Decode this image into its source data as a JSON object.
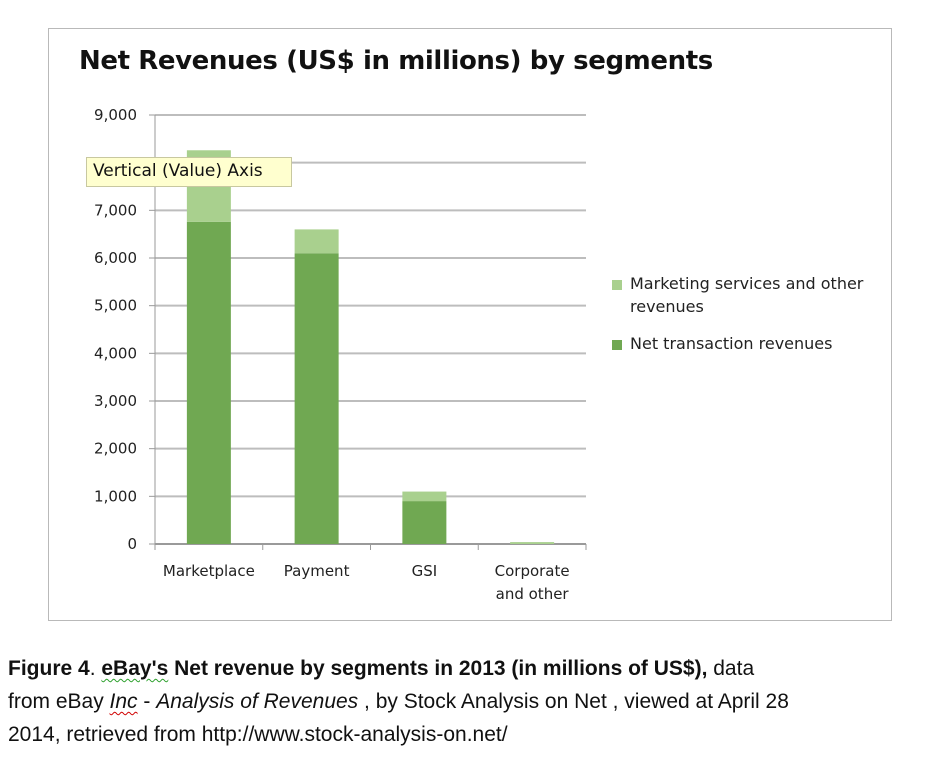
{
  "chart_data": {
    "type": "bar",
    "stacked": true,
    "title": "Net Revenues (US$ in millions) by segments",
    "xlabel": "",
    "ylabel": "",
    "categories": [
      "Marketplace",
      "Payment",
      "GSI",
      "Corporate and other"
    ],
    "category_lines": [
      [
        "Marketplace"
      ],
      [
        "Payment"
      ],
      [
        "GSI"
      ],
      [
        "Corporate",
        "and other"
      ]
    ],
    "series": [
      {
        "name": "Net transaction revenues",
        "values": [
          6760,
          6100,
          900,
          0
        ],
        "color": "#70a852"
      },
      {
        "name": "Marketing services and other revenues",
        "values": [
          1500,
          500,
          200,
          40
        ],
        "color": "#a9d08e"
      }
    ],
    "ylim": [
      0,
      9000
    ],
    "yticks": [
      0,
      1000,
      2000,
      3000,
      4000,
      5000,
      6000,
      7000,
      8000,
      9000
    ],
    "ytick_labels": [
      "0",
      "1,000",
      "2,000",
      "3,000",
      "4,000",
      "5,000",
      "6,000",
      "7,000",
      "",
      "9,000"
    ],
    "grid": true,
    "legend_position": "right"
  },
  "tooltip": "Vertical (Value) Axis",
  "legend": {
    "items": [
      {
        "label_line1": "Marketing services and other",
        "label_line2": "revenues",
        "color": "#a9d08e"
      },
      {
        "label_line1": "Net transaction revenues",
        "label_line2": "",
        "color": "#70a852"
      }
    ]
  },
  "caption": {
    "figure_label": "Figure 4",
    "dot": ".",
    "ebay_word": "eBay's",
    "bold_rest": " Net revenue by segments in 2013 (in millions of US$),",
    "text_data": " data",
    "text_from": "from eBay ",
    "inc_word": "Inc",
    "dash": " - ",
    "analysis": "Analysis of Revenues",
    "after_analysis": " , by Stock Analysis on Net , viewed at April 28",
    "line3": "2014, retrieved from http://www.stock-analysis-on.net/"
  }
}
